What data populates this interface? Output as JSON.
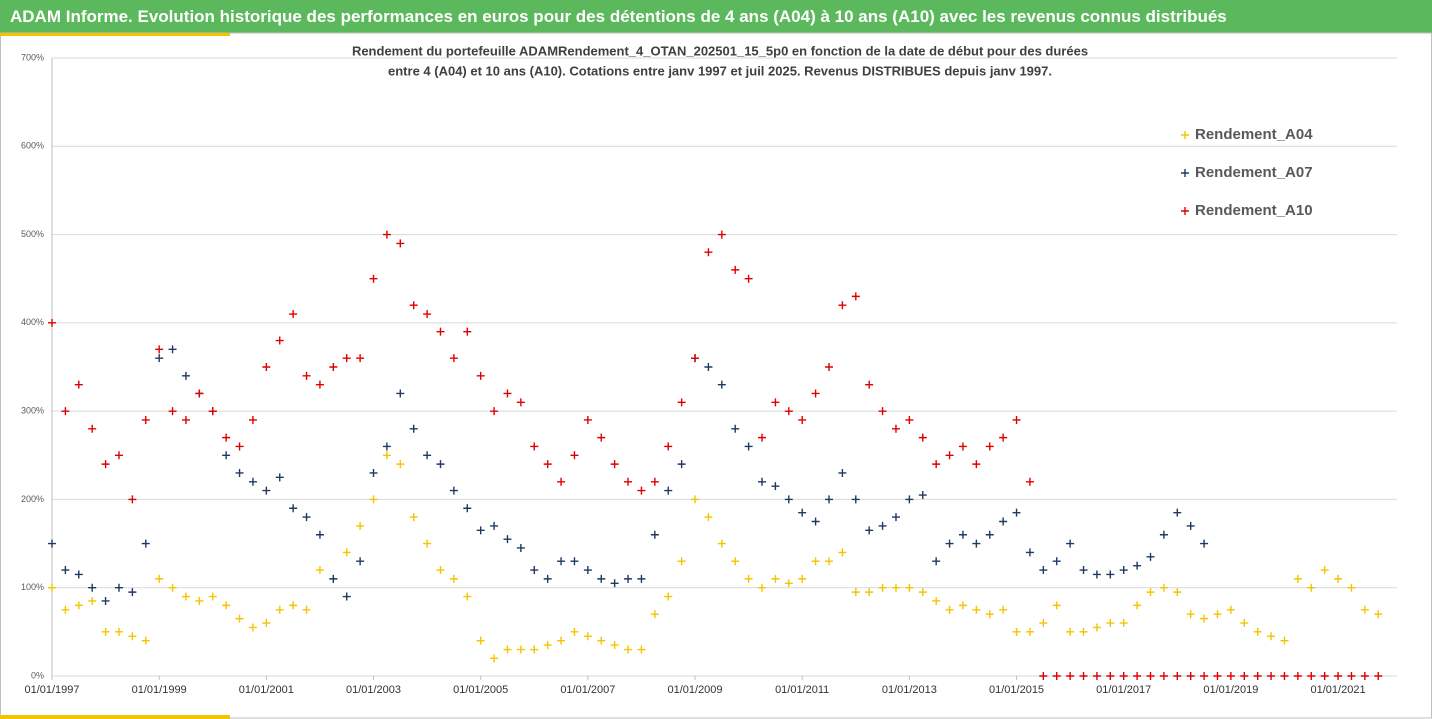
{
  "chart_data": {
    "type": "scatter",
    "title": "ADAM Informe. Evolution historique des performances en euros pour des détentions de 4 ans (A04) à 10 ans (A10) avec les revenus connus distribués",
    "subtitle": [
      "Rendement du portefeuille ADAMRendement_4_OTAN_202501_15_5p0  en fonction de la date de début pour des durées",
      "entre 4 (A04) et 10 ans (A10). Cotations  entre janv 1997 et juil 2025. Revenus DISTRIBUES depuis janv 1997."
    ],
    "x": [
      1997,
      1997.25,
      1997.5,
      1997.75,
      1998,
      1998.25,
      1998.5,
      1998.75,
      1999,
      1999.25,
      1999.5,
      1999.75,
      2000,
      2000.25,
      2000.5,
      2000.75,
      2001,
      2001.25,
      2001.5,
      2001.75,
      2002,
      2002.25,
      2002.5,
      2002.75,
      2003,
      2003.25,
      2003.5,
      2003.75,
      2004,
      2004.25,
      2004.5,
      2004.75,
      2005,
      2005.25,
      2005.5,
      2005.75,
      2006,
      2006.25,
      2006.5,
      2006.75,
      2007,
      2007.25,
      2007.5,
      2007.75,
      2008,
      2008.25,
      2008.5,
      2008.75,
      2009,
      2009.25,
      2009.5,
      2009.75,
      2010,
      2010.25,
      2010.5,
      2010.75,
      2011,
      2011.25,
      2011.5,
      2011.75,
      2012,
      2012.25,
      2012.5,
      2012.75,
      2013,
      2013.25,
      2013.5,
      2013.75,
      2014,
      2014.25,
      2014.5,
      2014.75,
      2015,
      2015.25,
      2015.5,
      2015.75,
      2016,
      2016.25,
      2016.5,
      2016.75,
      2017,
      2017.25,
      2017.5,
      2017.75,
      2018,
      2018.25,
      2018.5,
      2018.75,
      2019,
      2019.25,
      2019.5,
      2019.75,
      2020,
      2020.25,
      2020.5,
      2020.75,
      2021,
      2021.25,
      2021.5,
      2021.75
    ],
    "series": [
      {
        "name": "Rendement_A04",
        "color": "#f5c400",
        "values": [
          100,
          75,
          80,
          85,
          50,
          50,
          45,
          40,
          110,
          100,
          90,
          85,
          90,
          80,
          65,
          55,
          60,
          75,
          80,
          75,
          120,
          110,
          140,
          170,
          200,
          250,
          240,
          180,
          150,
          120,
          110,
          90,
          40,
          20,
          30,
          30,
          30,
          35,
          40,
          50,
          45,
          40,
          35,
          30,
          30,
          70,
          90,
          130,
          200,
          180,
          150,
          130,
          110,
          100,
          110,
          105,
          110,
          130,
          130,
          140,
          95,
          95,
          100,
          100,
          100,
          95,
          85,
          75,
          80,
          75,
          70,
          75,
          50,
          50,
          60,
          80,
          50,
          50,
          55,
          60,
          60,
          80,
          95,
          100,
          95,
          70,
          65,
          70,
          75,
          60,
          50,
          45,
          40,
          110,
          100,
          120,
          110,
          100,
          75,
          70
        ]
      },
      {
        "name": "Rendement_A07",
        "color": "#203864",
        "values": [
          150,
          120,
          115,
          100,
          85,
          100,
          95,
          150,
          360,
          370,
          340,
          320,
          300,
          250,
          230,
          220,
          210,
          225,
          190,
          180,
          160,
          110,
          90,
          130,
          230,
          260,
          320,
          280,
          250,
          240,
          210,
          190,
          165,
          170,
          155,
          145,
          120,
          110,
          130,
          130,
          120,
          110,
          105,
          110,
          110,
          160,
          210,
          240,
          360,
          350,
          330,
          280,
          260,
          220,
          215,
          200,
          185,
          175,
          200,
          230,
          200,
          165,
          170,
          180,
          200,
          205,
          130,
          150,
          160,
          150,
          160,
          175,
          185,
          140,
          120,
          130,
          150,
          120,
          115,
          115,
          120,
          125,
          135,
          160,
          185,
          170,
          150,
          null,
          null,
          null,
          null,
          null,
          null,
          null,
          null,
          null,
          null,
          null,
          null,
          null
        ]
      },
      {
        "name": "Rendement_A10",
        "color": "#e00000",
        "values": [
          400,
          300,
          330,
          280,
          240,
          250,
          200,
          290,
          370,
          300,
          290,
          320,
          300,
          270,
          260,
          290,
          350,
          380,
          410,
          340,
          330,
          350,
          360,
          360,
          450,
          500,
          490,
          420,
          410,
          390,
          360,
          390,
          340,
          300,
          320,
          310,
          260,
          240,
          220,
          250,
          290,
          270,
          240,
          220,
          210,
          220,
          260,
          310,
          360,
          480,
          500,
          460,
          450,
          270,
          310,
          300,
          290,
          320,
          350,
          420,
          430,
          330,
          300,
          280,
          290,
          270,
          240,
          250,
          260,
          240,
          260,
          270,
          290,
          220,
          0,
          0,
          0,
          0,
          0,
          0,
          0,
          0,
          0,
          0,
          0,
          0,
          0,
          0,
          0,
          0,
          0,
          0,
          0,
          0,
          0,
          0,
          0,
          0,
          0,
          0
        ]
      }
    ],
    "xlim": [
      1997,
      2022.1
    ],
    "xticks": [
      {
        "value": 1997,
        "label": "01/01/1997"
      },
      {
        "value": 1999,
        "label": "01/01/1999"
      },
      {
        "value": 2001,
        "label": "01/01/2001"
      },
      {
        "value": 2003,
        "label": "01/01/2003"
      },
      {
        "value": 2005,
        "label": "01/01/2005"
      },
      {
        "value": 2007,
        "label": "01/01/2007"
      },
      {
        "value": 2009,
        "label": "01/01/2009"
      },
      {
        "value": 2011,
        "label": "01/01/2011"
      },
      {
        "value": 2013,
        "label": "01/01/2013"
      },
      {
        "value": 2015,
        "label": "01/01/2015"
      },
      {
        "value": 2017,
        "label": "01/01/2017"
      },
      {
        "value": 2019,
        "label": "01/01/2019"
      },
      {
        "value": 2021,
        "label": "01/01/2021"
      }
    ],
    "ylim": [
      0,
      700
    ],
    "yticks": [
      {
        "value": 0,
        "label": "0%"
      },
      {
        "value": 100,
        "label": "100%"
      },
      {
        "value": 200,
        "label": "200%"
      },
      {
        "value": 300,
        "label": "300%"
      },
      {
        "value": 400,
        "label": "400%"
      },
      {
        "value": 500,
        "label": "500%"
      },
      {
        "value": 600,
        "label": "600%"
      },
      {
        "value": 700,
        "label": "700%"
      }
    ],
    "grid": true,
    "legend": "top-right"
  }
}
